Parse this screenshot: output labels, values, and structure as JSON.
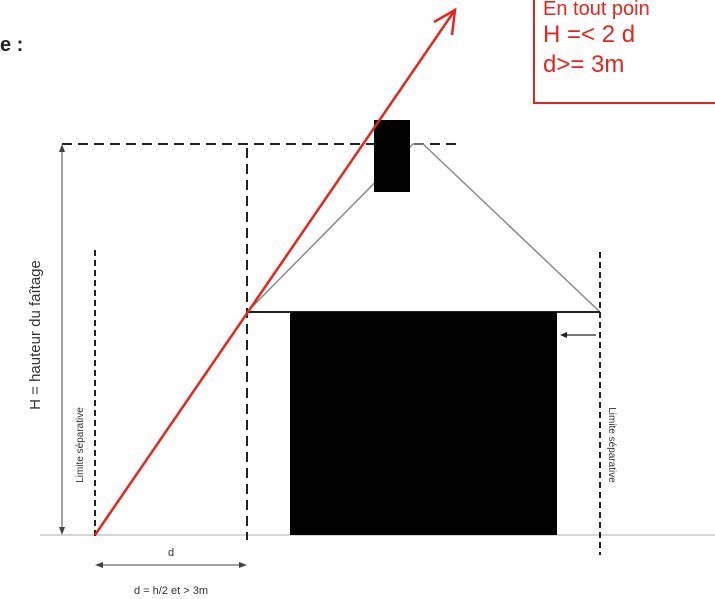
{
  "header_fragment": "e :",
  "rule_box": {
    "line1": "En tout poin",
    "line2": "H =< 2 d",
    "line3": "d>= 3m"
  },
  "labels": {
    "height_axis": "H = hauteur du faîtage",
    "limit_left": "Limite séparative",
    "limit_right": "Limite séparative",
    "d_short": "d",
    "d_rule": "d = h/2 et > 3m"
  },
  "colors": {
    "red": "#e8241f",
    "black": "#000000",
    "gray_roof": "#8a8a8a"
  }
}
